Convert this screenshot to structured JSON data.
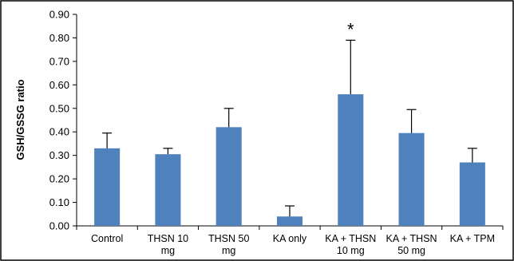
{
  "chart_data": {
    "type": "bar",
    "title": "",
    "xlabel": "",
    "ylabel": "GSH/GSSG ratio",
    "ylim": [
      0,
      0.9
    ],
    "yticks": [
      "0.00",
      "0.10",
      "0.20",
      "0.30",
      "0.40",
      "0.50",
      "0.60",
      "0.70",
      "0.80",
      "0.90"
    ],
    "grid": false,
    "legend": "none",
    "categories": [
      [
        "Control"
      ],
      [
        "THSN 10",
        "mg"
      ],
      [
        "THSN 50",
        "mg"
      ],
      [
        "KA only"
      ],
      [
        "KA + THSN",
        "10 mg"
      ],
      [
        "KA + THSN",
        "50 mg"
      ],
      [
        "KA + TPM"
      ]
    ],
    "values": [
      0.33,
      0.305,
      0.42,
      0.04,
      0.56,
      0.395,
      0.27
    ],
    "errors": [
      0.065,
      0.025,
      0.08,
      0.045,
      0.23,
      0.1,
      0.06
    ],
    "annotations": [
      {
        "category_index": 4,
        "text": "*"
      }
    ],
    "colors": {
      "bar": "#4f81bd",
      "frame": "#000000"
    }
  }
}
